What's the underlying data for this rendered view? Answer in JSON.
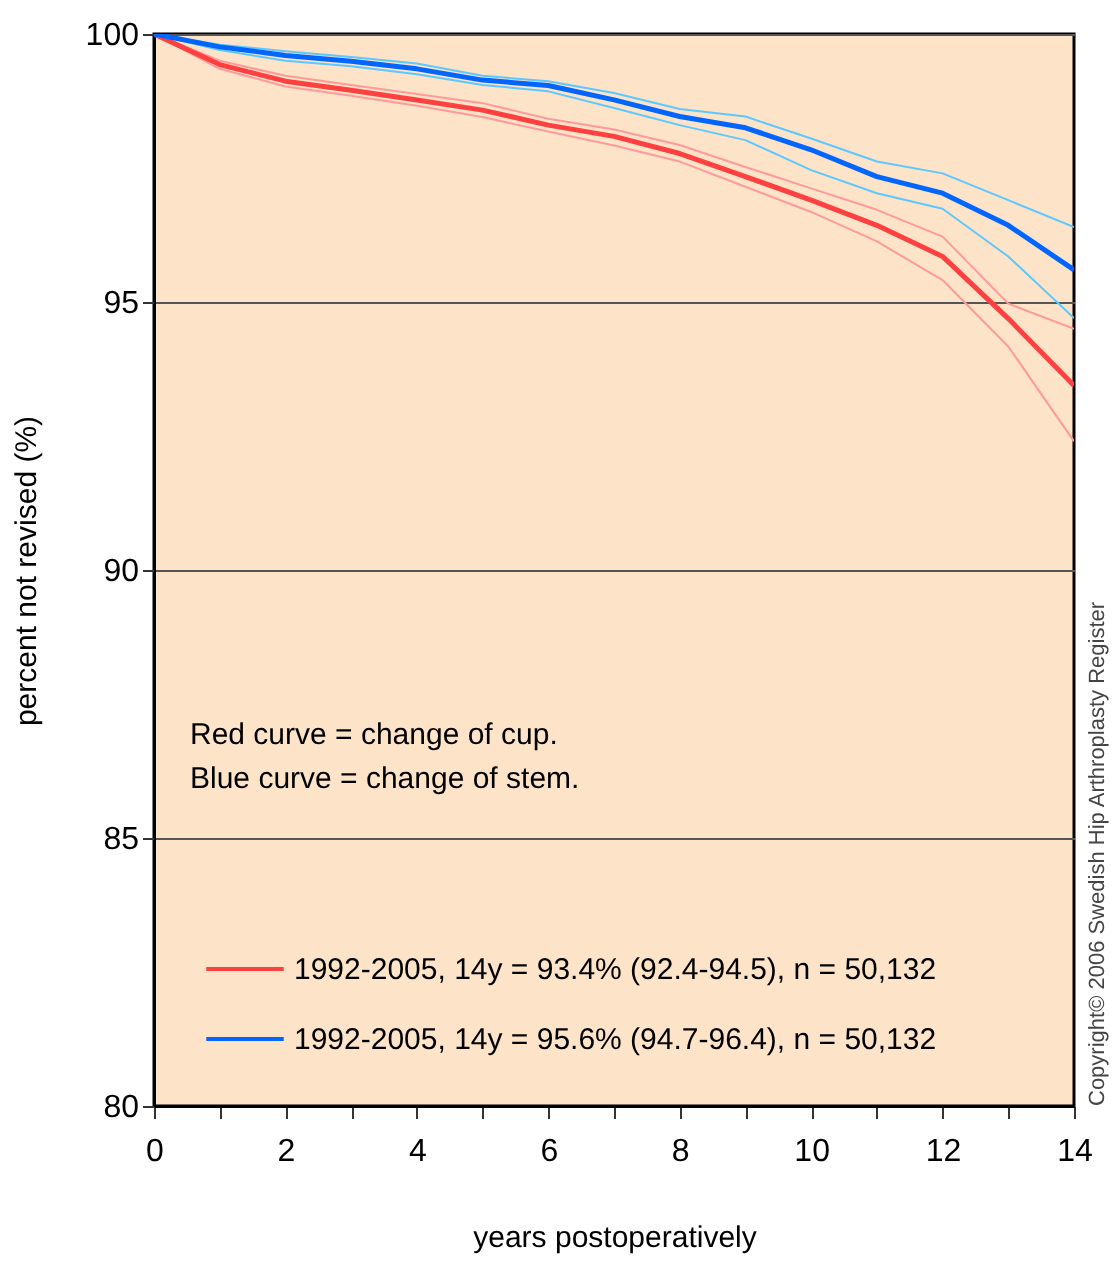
{
  "chart_data": {
    "type": "line",
    "xlabel": "years postoperatively",
    "ylabel": "percent not revised (%)",
    "x": [
      0,
      1,
      2,
      3,
      4,
      5,
      6,
      7,
      8,
      9,
      10,
      11,
      12,
      13,
      14
    ],
    "xlim": [
      0,
      14
    ],
    "xticks": [
      0,
      {
        "value": 1,
        "label": null
      },
      2,
      {
        "value": 3,
        "label": null
      },
      4,
      {
        "value": 5,
        "label": null
      },
      6,
      {
        "value": 7,
        "label": null
      },
      8,
      {
        "value": 9,
        "label": null
      },
      10,
      {
        "value": 11,
        "label": null
      },
      12,
      {
        "value": 13,
        "label": null
      },
      14
    ],
    "ylim": [
      80,
      100
    ],
    "yticks": [
      80,
      85,
      90,
      95,
      100
    ],
    "grid": "y",
    "legend": "bottom left",
    "series": [
      {
        "name": "1992-2005, 14y = 93.4% (92.4-94.5), n = 50,132",
        "color": "#ff4040",
        "values": [
          100,
          99.43,
          99.12,
          98.95,
          98.77,
          98.58,
          98.3,
          98.09,
          97.77,
          97.34,
          96.9,
          96.43,
          95.85,
          94.69,
          93.44
        ]
      },
      {
        "name": "1992-2005, 14y = 95.6% (94.7-96.4), n = 50,132",
        "color": "#0066ff",
        "values": [
          100,
          99.76,
          99.6,
          99.49,
          99.35,
          99.14,
          99.04,
          98.77,
          98.46,
          98.25,
          97.84,
          97.34,
          97.03,
          96.43,
          95.6
        ]
      },
      {
        "color": "#ff9a9a",
        "values": [
          100,
          99.35,
          99.02,
          98.85,
          98.66,
          98.45,
          98.18,
          97.92,
          97.62,
          97.15,
          96.68,
          96.13,
          95.41,
          94.17,
          92.4
        ]
      },
      {
        "color": "#ff9a9a",
        "values": [
          100,
          99.5,
          99.22,
          99.05,
          98.88,
          98.71,
          98.42,
          98.22,
          97.93,
          97.52,
          97.12,
          96.72,
          96.22,
          94.97,
          94.5
        ]
      },
      {
        "color": "#5cc8ff",
        "values": [
          100,
          99.7,
          99.5,
          99.4,
          99.25,
          99.05,
          98.93,
          98.62,
          98.3,
          98.02,
          97.46,
          97.03,
          96.74,
          95.85,
          94.7
        ]
      },
      {
        "color": "#5cc8ff",
        "values": [
          100,
          99.8,
          99.68,
          99.57,
          99.45,
          99.22,
          99.12,
          98.9,
          98.6,
          98.46,
          98.05,
          97.62,
          97.4,
          96.9,
          96.4
        ]
      }
    ],
    "annotations": [
      "Red curve = change of cup.",
      "Blue curve = change of stem.",
      "Copyright© 2006 Swedish Hip Arthroplasty Register"
    ]
  }
}
